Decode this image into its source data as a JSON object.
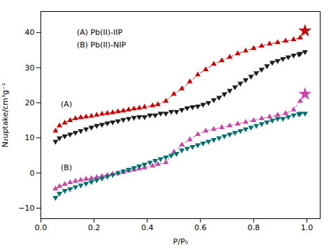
{
  "chart_data": {
    "type": "line",
    "xlabel": "P/P₀",
    "ylabel": "N₂uptake/cm³g⁻¹",
    "xlim": [
      0.0,
      1.05
    ],
    "ylim": [
      -13,
      46
    ],
    "xticks": [
      {
        "value": 0.0,
        "label": "0.0"
      },
      {
        "value": 0.2,
        "label": "0.2"
      },
      {
        "value": 0.4,
        "label": "0.4"
      },
      {
        "value": 0.6,
        "label": "0.6"
      },
      {
        "value": 0.8,
        "label": "0.8"
      },
      {
        "value": 1.0,
        "label": "1.0"
      }
    ],
    "yticks": [
      -10,
      0,
      10,
      20,
      30,
      40
    ],
    "series": [
      {
        "type": "line",
        "color": "#CC0000",
        "marker": "triangle-up",
        "line_style": "dashed",
        "x": [
          0.055,
          0.07,
          0.09,
          0.11,
          0.13,
          0.15,
          0.17,
          0.19,
          0.21,
          0.23,
          0.25,
          0.27,
          0.29,
          0.31,
          0.33,
          0.35,
          0.37,
          0.39,
          0.42,
          0.44,
          0.47,
          0.5,
          0.53,
          0.56,
          0.59,
          0.62,
          0.65,
          0.68,
          0.71,
          0.74,
          0.77,
          0.8,
          0.83,
          0.86,
          0.89,
          0.92,
          0.95,
          0.975
        ],
        "values": [
          12.0,
          13.5,
          14.3,
          15.0,
          15.5,
          15.8,
          16.0,
          16.2,
          16.5,
          16.8,
          17.0,
          17.2,
          17.5,
          17.7,
          18.0,
          18.3,
          18.5,
          18.8,
          19.2,
          19.5,
          20.5,
          22.5,
          24.0,
          26.0,
          28.0,
          29.5,
          31.0,
          32.0,
          33.0,
          34.0,
          34.8,
          35.5,
          36.2,
          36.8,
          37.2,
          37.6,
          38.0,
          38.5
        ]
      },
      {
        "type": "scatter",
        "color": "#CC0000",
        "marker": "star",
        "x": [
          0.993
        ],
        "values": [
          40.5
        ]
      },
      {
        "type": "line",
        "color": "#1a1a1a",
        "marker": "triangle-down",
        "line_style": "dashed",
        "x": [
          0.993,
          0.975,
          0.97,
          0.95,
          0.93,
          0.91,
          0.89,
          0.87,
          0.85,
          0.83,
          0.81,
          0.79,
          0.77,
          0.75,
          0.73,
          0.71,
          0.69,
          0.67,
          0.65,
          0.63,
          0.61,
          0.59,
          0.57,
          0.55,
          0.53,
          0.51,
          0.49,
          0.47,
          0.45,
          0.43,
          0.41,
          0.39,
          0.37,
          0.35,
          0.33,
          0.31,
          0.29,
          0.27,
          0.25,
          0.23,
          0.21,
          0.19,
          0.17,
          0.15,
          0.13,
          0.11,
          0.09,
          0.07,
          0.055
        ],
        "values": [
          34.5,
          34.0,
          33.8,
          33.5,
          33.0,
          32.5,
          32.0,
          31.5,
          30.5,
          29.5,
          28.5,
          27.5,
          26.5,
          25.5,
          24.5,
          23.5,
          22.5,
          21.5,
          20.8,
          20.0,
          19.5,
          19.0,
          18.8,
          18.5,
          18.0,
          17.5,
          17.5,
          17.0,
          17.0,
          16.5,
          16.5,
          16.0,
          16.0,
          15.8,
          15.5,
          15.2,
          14.8,
          14.5,
          14.2,
          13.8,
          13.5,
          13.0,
          12.5,
          12.0,
          11.5,
          11.0,
          10.5,
          10.0,
          9.0
        ]
      },
      {
        "type": "line",
        "color": "#CC44AA",
        "marker": "triangle-up",
        "line_style": "dashed",
        "x": [
          0.055,
          0.07,
          0.09,
          0.11,
          0.13,
          0.15,
          0.17,
          0.19,
          0.21,
          0.23,
          0.25,
          0.27,
          0.29,
          0.31,
          0.33,
          0.35,
          0.37,
          0.39,
          0.42,
          0.44,
          0.47,
          0.5,
          0.53,
          0.56,
          0.59,
          0.62,
          0.65,
          0.68,
          0.71,
          0.74,
          0.77,
          0.8,
          0.83,
          0.86,
          0.89,
          0.92,
          0.95,
          0.975
        ],
        "values": [
          -4.5,
          -3.8,
          -3.2,
          -2.7,
          -2.3,
          -2.0,
          -1.7,
          -1.5,
          -1.2,
          -0.9,
          -0.6,
          -0.3,
          0.0,
          0.3,
          0.6,
          0.9,
          1.2,
          1.5,
          2.0,
          2.5,
          3.0,
          6.0,
          8.0,
          9.5,
          11.0,
          12.0,
          12.5,
          13.0,
          13.5,
          14.0,
          14.5,
          15.0,
          15.5,
          16.0,
          16.5,
          17.0,
          18.0,
          20.5
        ]
      },
      {
        "type": "scatter",
        "color": "#CC44AA",
        "marker": "star",
        "x": [
          0.993
        ],
        "values": [
          22.5
        ]
      },
      {
        "type": "line",
        "color": "#007070",
        "marker": "triangle-down",
        "line_style": "dashed",
        "x": [
          0.993,
          0.975,
          0.97,
          0.95,
          0.93,
          0.91,
          0.89,
          0.87,
          0.85,
          0.83,
          0.81,
          0.79,
          0.77,
          0.75,
          0.73,
          0.71,
          0.69,
          0.67,
          0.65,
          0.63,
          0.61,
          0.59,
          0.57,
          0.55,
          0.53,
          0.51,
          0.49,
          0.47,
          0.45,
          0.43,
          0.41,
          0.39,
          0.37,
          0.35,
          0.33,
          0.31,
          0.29,
          0.27,
          0.25,
          0.23,
          0.21,
          0.19,
          0.17,
          0.15,
          0.13,
          0.11,
          0.09,
          0.07,
          0.055
        ],
        "values": [
          17.0,
          17.0,
          16.8,
          16.5,
          16.0,
          15.5,
          15.5,
          15.0,
          14.5,
          14.0,
          13.5,
          13.0,
          12.5,
          12.0,
          11.5,
          11.0,
          10.5,
          10.0,
          9.5,
          9.0,
          8.5,
          8.0,
          7.5,
          7.0,
          6.5,
          5.5,
          5.0,
          4.5,
          4.0,
          3.5,
          3.0,
          2.5,
          2.0,
          1.5,
          1.0,
          0.5,
          0.0,
          -0.5,
          -1.0,
          -1.5,
          -2.0,
          -2.5,
          -3.0,
          -3.5,
          -4.0,
          -4.5,
          -5.0,
          -5.8,
          -7.0
        ]
      }
    ],
    "annotations": [
      {
        "text": "(A)",
        "x": 0.075,
        "y": 19.5
      },
      {
        "text": "(B)",
        "x": 0.075,
        "y": 1.5
      },
      {
        "text": "(A) Pb(II)-IIP",
        "x": 0.135,
        "y": 40.0
      },
      {
        "text": "(B) Pb(II)-NIP",
        "x": 0.135,
        "y": 36.5
      }
    ]
  }
}
